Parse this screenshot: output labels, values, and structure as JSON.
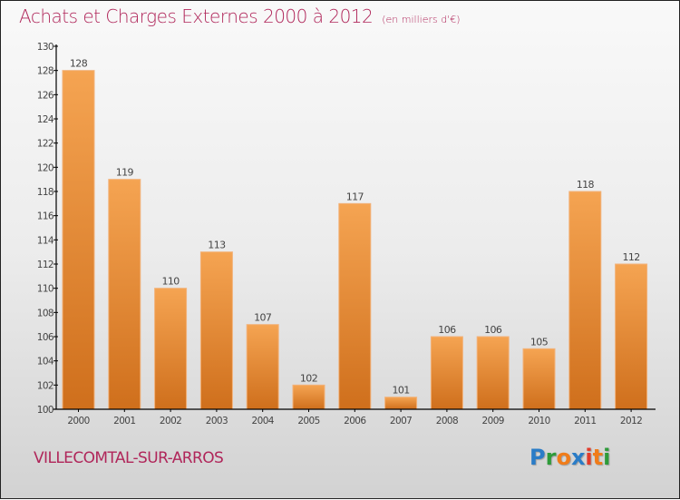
{
  "chart_data": {
    "type": "bar",
    "title": "Achats et Charges Externes 2000 à 2012",
    "subtitle": "(en milliers d'€)",
    "xlabel": "",
    "ylabel": "",
    "categories": [
      "2000",
      "2001",
      "2002",
      "2003",
      "2004",
      "2005",
      "2006",
      "2007",
      "2008",
      "2009",
      "2010",
      "2011",
      "2012"
    ],
    "values": [
      128,
      119,
      110,
      113,
      107,
      102,
      117,
      101,
      106,
      106,
      105,
      118,
      112
    ],
    "ylim": [
      100,
      130
    ],
    "yticks": [
      100,
      102,
      104,
      106,
      108,
      110,
      112,
      114,
      116,
      118,
      120,
      122,
      124,
      126,
      128,
      130
    ],
    "grid": false,
    "legend": "none",
    "bar_color": "#e8872e"
  },
  "footer": {
    "location": "VILLECOMTAL-SUR-ARROS",
    "logo_letters": [
      {
        "ch": "P",
        "color": "#2a7cc7"
      },
      {
        "ch": "r",
        "color": "#2e9b3a"
      },
      {
        "ch": "o",
        "color": "#f07c1a"
      },
      {
        "ch": "x",
        "color": "#2a7cc7"
      },
      {
        "ch": "i",
        "color": "#e23b2a"
      },
      {
        "ch": "t",
        "color": "#f07c1a"
      },
      {
        "ch": "i",
        "color": "#2e9b3a"
      }
    ]
  },
  "colors": {
    "title": "#b0265a",
    "axis": "#000000",
    "text": "#444444"
  }
}
